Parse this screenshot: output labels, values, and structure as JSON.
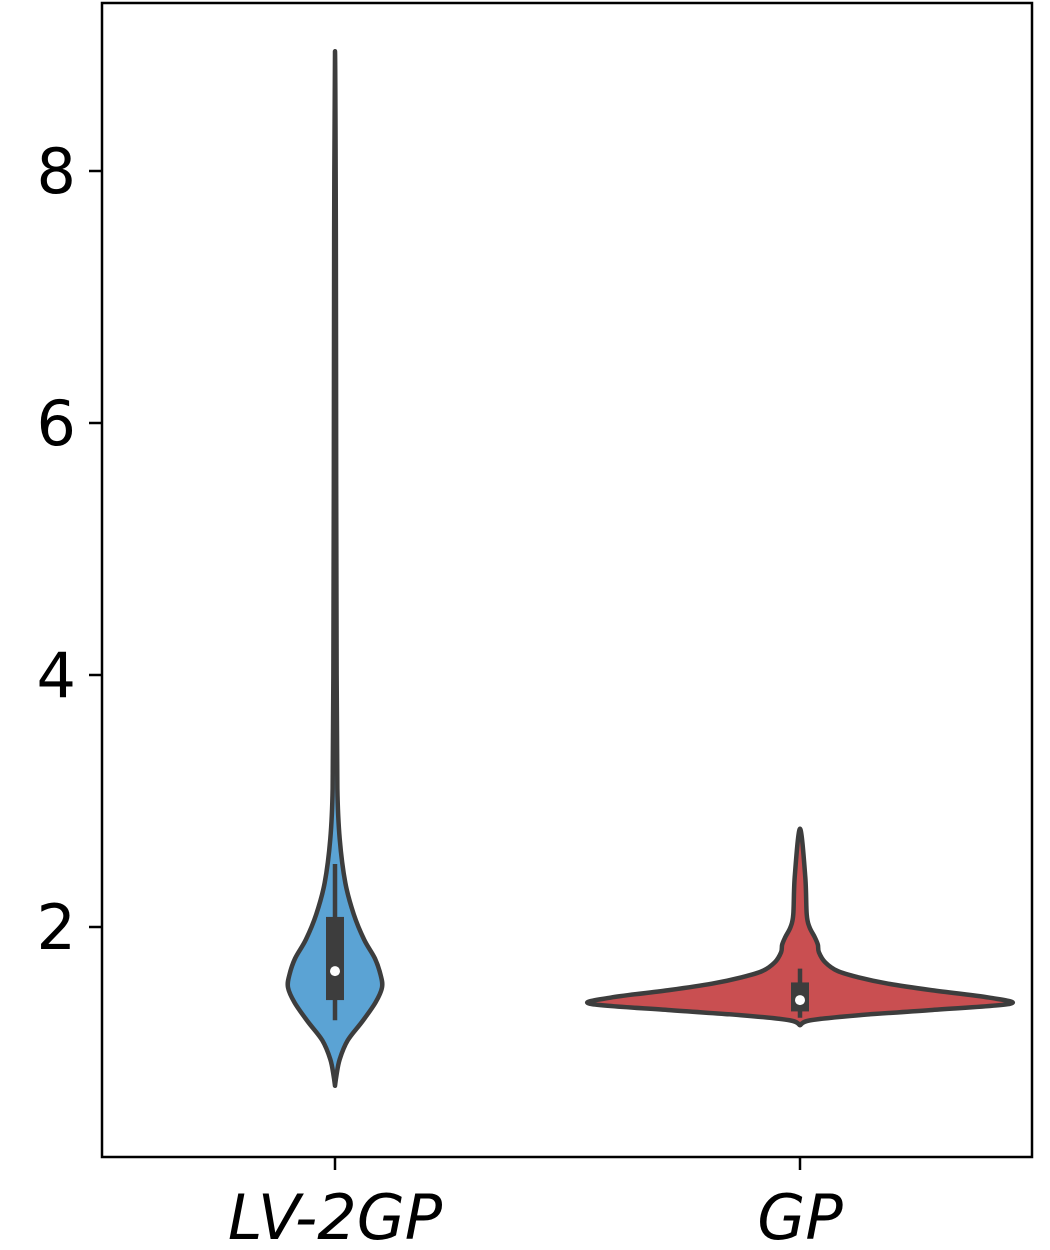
{
  "chart_data": {
    "type": "violin",
    "title": "",
    "xlabel": "",
    "ylabel": "",
    "ylim": [
      0.8,
      9.3
    ],
    "yticks": [
      2,
      4,
      6,
      8
    ],
    "ytick_labels": [
      "2",
      "4",
      "6",
      "8"
    ],
    "grid": false,
    "legend": "none",
    "categories": [
      "LV-2GP",
      "GP"
    ],
    "colors": {
      "LV-2GP": "#5ba3d4",
      "GP": "#c94f51",
      "outline": "#3d3d3d",
      "median_dot": "#ffffff"
    },
    "series": [
      {
        "category": "LV-2GP",
        "min": 0.74,
        "q1": 1.42,
        "median": 1.65,
        "q3": 2.08,
        "whisker_low": 1.26,
        "whisker_high": 2.5,
        "max": 8.95,
        "density_profile": [
          [
            0.74,
            0.0
          ],
          [
            0.82,
            0.03
          ],
          [
            0.95,
            0.1
          ],
          [
            1.1,
            0.27
          ],
          [
            1.25,
            0.58
          ],
          [
            1.4,
            0.86
          ],
          [
            1.52,
            1.0
          ],
          [
            1.62,
            0.97
          ],
          [
            1.75,
            0.85
          ],
          [
            1.9,
            0.62
          ],
          [
            2.1,
            0.4
          ],
          [
            2.35,
            0.22
          ],
          [
            2.7,
            0.1
          ],
          [
            3.1,
            0.05
          ],
          [
            4.0,
            0.035
          ],
          [
            5.5,
            0.025
          ],
          [
            7.5,
            0.018
          ],
          [
            8.95,
            0.0
          ]
        ]
      },
      {
        "category": "GP",
        "min": 1.22,
        "q1": 1.33,
        "median": 1.42,
        "q3": 1.56,
        "whisker_low": 1.28,
        "whisker_high": 1.67,
        "max": 2.78,
        "density_profile": [
          [
            1.22,
            0.0
          ],
          [
            1.26,
            0.05
          ],
          [
            1.3,
            0.28
          ],
          [
            1.34,
            0.62
          ],
          [
            1.39,
            1.0
          ],
          [
            1.44,
            0.9
          ],
          [
            1.5,
            0.62
          ],
          [
            1.55,
            0.42
          ],
          [
            1.6,
            0.28
          ],
          [
            1.65,
            0.18
          ],
          [
            1.72,
            0.12
          ],
          [
            1.8,
            0.09
          ],
          [
            1.86,
            0.085
          ],
          [
            1.92,
            0.07
          ],
          [
            2.0,
            0.045
          ],
          [
            2.1,
            0.032
          ],
          [
            2.4,
            0.025
          ],
          [
            2.78,
            0.0
          ]
        ]
      }
    ]
  }
}
